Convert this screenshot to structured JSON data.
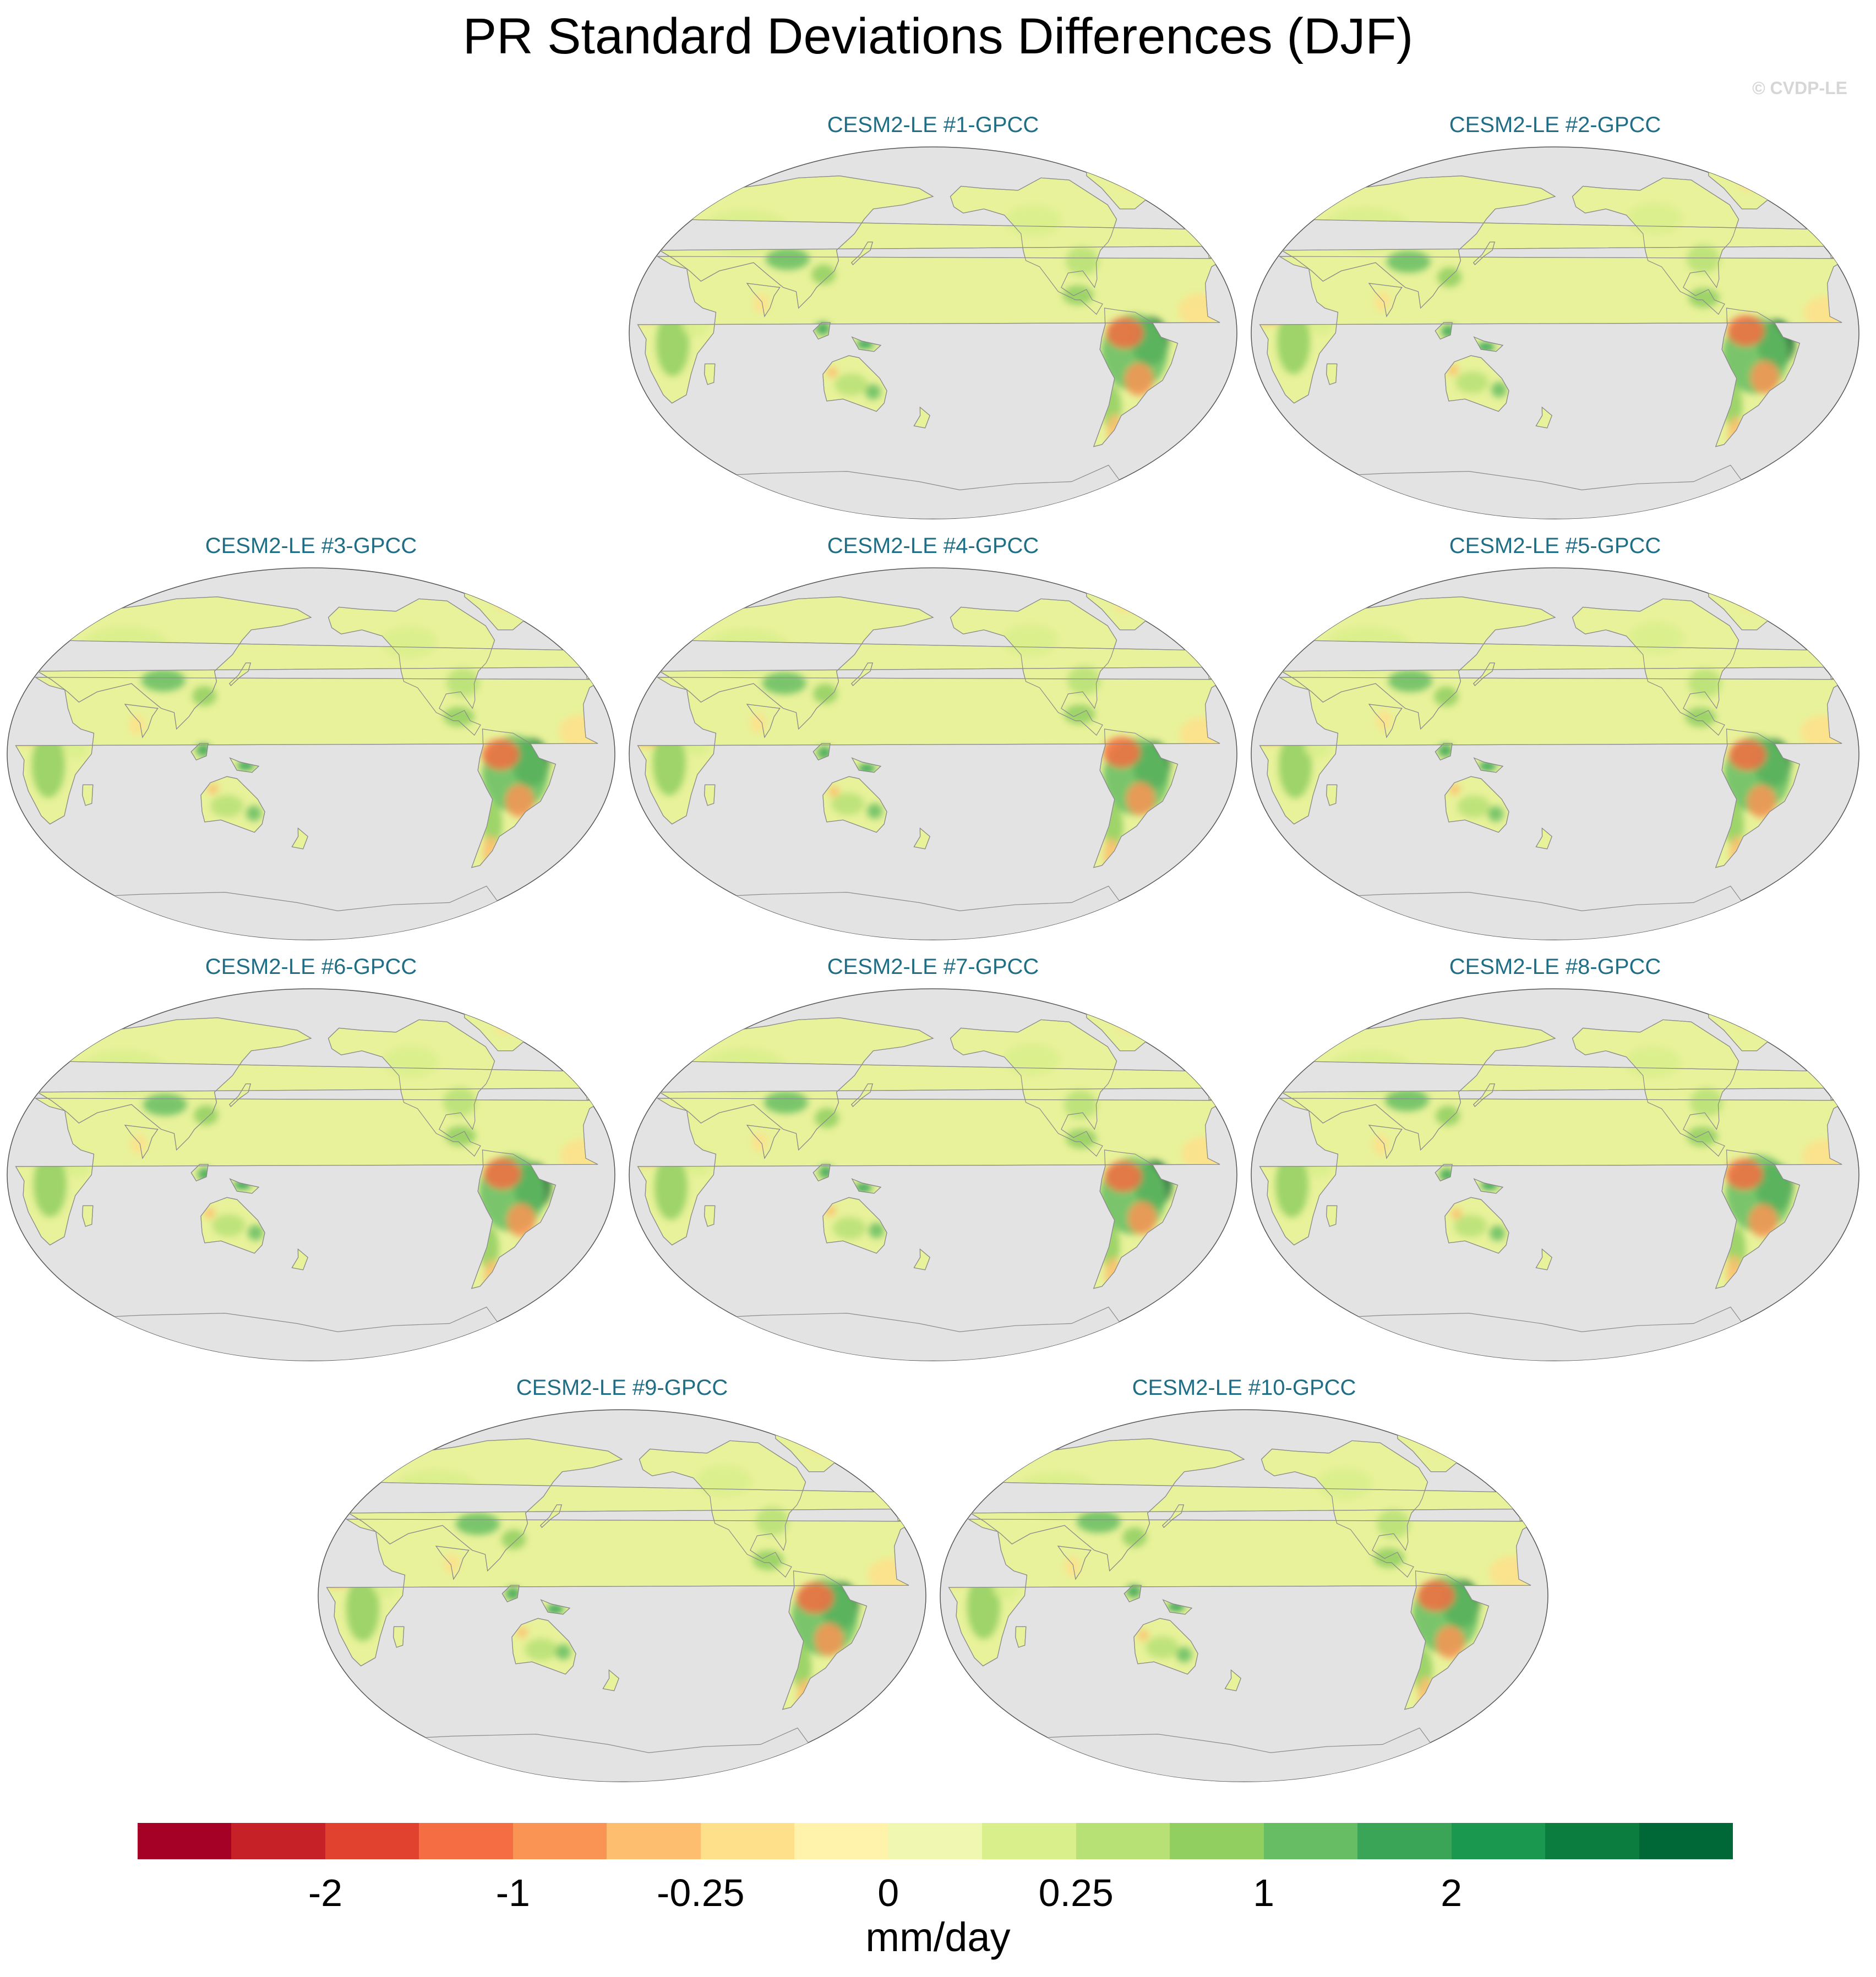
{
  "title": "PR Standard Deviations Differences (DJF)",
  "copyright": "© CVDP-LE",
  "panels": [
    {
      "label": "CESM2-LE #1-GPCC"
    },
    {
      "label": "CESM2-LE #2-GPCC"
    },
    {
      "label": "CESM2-LE #3-GPCC"
    },
    {
      "label": "CESM2-LE #4-GPCC"
    },
    {
      "label": "CESM2-LE #5-GPCC"
    },
    {
      "label": "CESM2-LE #6-GPCC"
    },
    {
      "label": "CESM2-LE #7-GPCC"
    },
    {
      "label": "CESM2-LE #8-GPCC"
    },
    {
      "label": "CESM2-LE #9-GPCC"
    },
    {
      "label": "CESM2-LE #10-GPCC"
    }
  ],
  "colorbar": {
    "colors": [
      "#a50026",
      "#c62127",
      "#e0422f",
      "#f46d43",
      "#f99455",
      "#fdbf6f",
      "#fee08b",
      "#fff3ac",
      "#eff7b0",
      "#d9ef8b",
      "#b7e075",
      "#91cf60",
      "#66bd63",
      "#3aa556",
      "#1a9850",
      "#0b7d3f",
      "#006837"
    ],
    "tick_labels": [
      "-2",
      "-1",
      "-0.25",
      "0",
      "0.25",
      "1",
      "2"
    ],
    "units": "mm/day"
  },
  "map_colors": {
    "ocean": "#e3e3e3",
    "land_base": "#e8f29a",
    "coastline": "#8a8a8a"
  }
}
